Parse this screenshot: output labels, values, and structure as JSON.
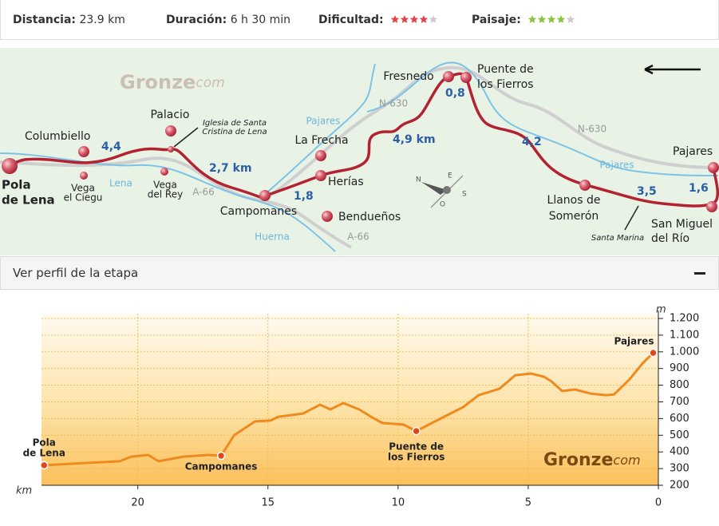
{
  "header": {
    "stats": [
      {
        "label": "Distancia:",
        "value": "23.9 km"
      },
      {
        "label": "Duración:",
        "value": "6 h 30 min"
      },
      {
        "label": "Dificultad:",
        "rating": 4,
        "out_of": 5,
        "color": "#e2434b"
      },
      {
        "label": "Paisaje:",
        "rating": 4,
        "out_of": 5,
        "color": "#8bc43f"
      }
    ]
  },
  "map": {
    "watermark": [
      "Gronze",
      "com"
    ],
    "labels": [
      [
        "Pola",
        "de Lena"
      ],
      [
        "Columbiello"
      ],
      [
        "Vega",
        "el Ciegu"
      ],
      [
        "4,4"
      ],
      [
        "Lena"
      ],
      [
        "Palacio"
      ],
      [
        "Iglesia de Santa",
        "Cristina de Lena"
      ],
      [
        "Vega",
        "del Rey"
      ],
      [
        "A-66"
      ],
      [
        "2,7 km"
      ],
      [
        "Campomanes"
      ],
      [
        "1,8"
      ],
      [
        "Huerna"
      ],
      [
        "La Frecha"
      ],
      [
        "Herías"
      ],
      [
        "Bendueños"
      ],
      [
        "A-66"
      ],
      [
        "Pajares"
      ],
      [
        "N-630"
      ],
      [
        "4,9 km"
      ],
      [
        "Fresnedo"
      ],
      [
        "0,8"
      ],
      [
        "Puente de",
        "los Fierros"
      ],
      [
        "N-630"
      ],
      [
        "4,2"
      ],
      [
        "Llanos de",
        "Somerón"
      ],
      [
        "Pajares"
      ],
      [
        "Santa Marina"
      ],
      [
        "3,5"
      ],
      [
        "San Miguel",
        "del Río"
      ],
      [
        "Pajares"
      ],
      [
        "1,6"
      ],
      [
        "N"
      ],
      [
        "E"
      ],
      [
        "S"
      ],
      [
        "O"
      ]
    ]
  },
  "section": {
    "title": "Ver perfil de la etapa"
  },
  "chart_data": {
    "type": "line",
    "x_label": "km",
    "y_label": "m",
    "watermark": [
      "Gronze",
      "com"
    ],
    "x": [
      23.6,
      20.7,
      20.25,
      19.6,
      19.3,
      19.2,
      18.25,
      17.3,
      16.8,
      16.3,
      15.5,
      14.9,
      14.6,
      13.65,
      13.0,
      12.6,
      12.1,
      11.5,
      11.0,
      10.6,
      9.8,
      9.3,
      8.7,
      8.1,
      7.5,
      6.9,
      6.1,
      5.5,
      4.9,
      4.4,
      4.1,
      3.7,
      3.2,
      2.6,
      2.0,
      1.7,
      1.1,
      0.6,
      0.2
    ],
    "series": [
      {
        "color": "#ef8a1e",
        "values": [
          320,
          344,
          372,
          382,
          353,
          344,
          372,
          382,
          377,
          500,
          583,
          588,
          611,
          630,
          683,
          655,
          693,
          655,
          607,
          573,
          564,
          525,
          573,
          621,
          669,
          740,
          779,
          860,
          870,
          851,
          822,
          765,
          774,
          750,
          740,
          745,
          836,
          932,
          994
        ]
      }
    ],
    "annotations": [
      {
        "label": [
          "Pola",
          "de Lena"
        ],
        "x": 23.6,
        "y": 320
      },
      {
        "label": [
          "Campomanes"
        ],
        "x": 16.8,
        "y": 377
      },
      {
        "label": [
          "Puente de",
          "los Fierros"
        ],
        "x": 9.3,
        "y": 525
      },
      {
        "label": [
          "Pajares"
        ],
        "x": 0.2,
        "y": 994
      }
    ],
    "marker_color": "#e0481c",
    "xlim": [
      23.7,
      0
    ],
    "xticks": [
      20,
      15,
      10,
      5,
      0
    ],
    "ylim": [
      200,
      1200
    ],
    "yticks": [
      200,
      300,
      400,
      500,
      600,
      700,
      800,
      900,
      {
        "value": 1000,
        "label": "1.000"
      },
      {
        "value": 1100,
        "label": "1.100"
      },
      {
        "value": 1200,
        "label": "1.200"
      }
    ],
    "grid": true
  }
}
